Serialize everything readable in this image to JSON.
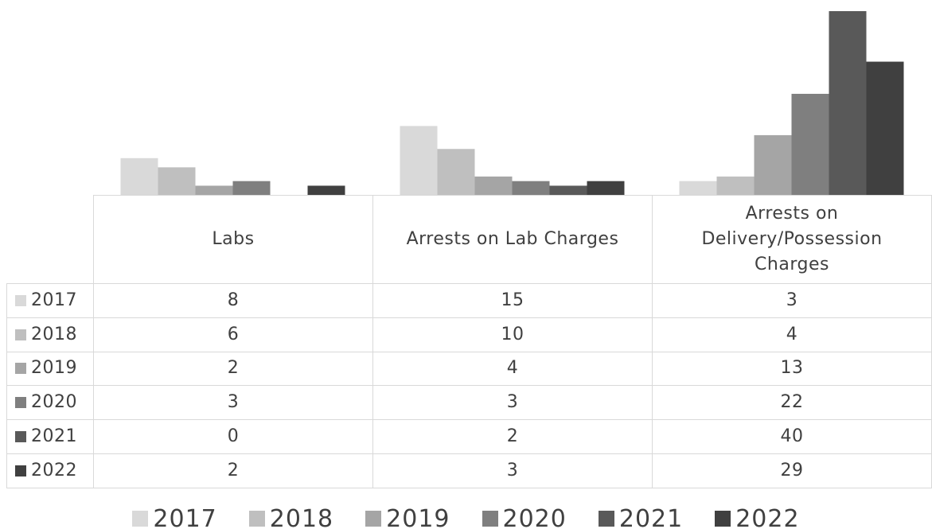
{
  "chart_data": {
    "type": "bar",
    "categories": [
      "Labs",
      "Arrests on Lab Charges",
      "Arrests on Delivery/Possession Charges"
    ],
    "series": [
      {
        "name": "2017",
        "color": "#d9d9d9",
        "values": [
          8,
          15,
          3
        ]
      },
      {
        "name": "2018",
        "color": "#bfbfbf",
        "values": [
          6,
          10,
          4
        ]
      },
      {
        "name": "2019",
        "color": "#a5a5a5",
        "values": [
          2,
          4,
          13
        ]
      },
      {
        "name": "2020",
        "color": "#7f7f7f",
        "values": [
          3,
          3,
          22
        ]
      },
      {
        "name": "2021",
        "color": "#595959",
        "values": [
          0,
          2,
          40
        ]
      },
      {
        "name": "2022",
        "color": "#404040",
        "values": [
          2,
          3,
          29
        ]
      }
    ],
    "ylim": [
      0,
      40
    ],
    "legend": "bottom"
  }
}
